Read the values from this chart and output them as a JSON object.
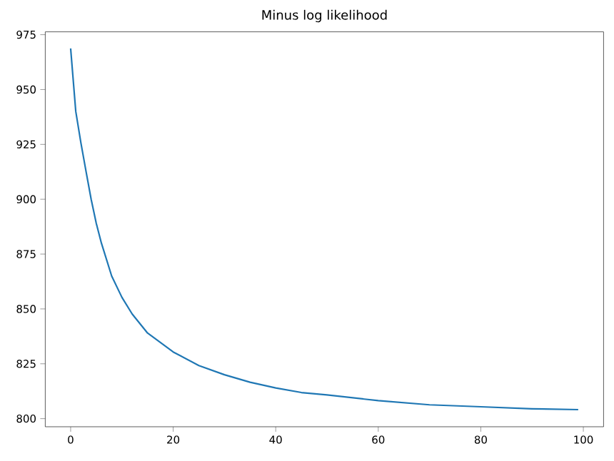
{
  "chart_data": {
    "type": "line",
    "title": "Minus log likelihood",
    "x": [
      0,
      1,
      2,
      3,
      4,
      5,
      6,
      8,
      10,
      12,
      15,
      20,
      25,
      30,
      35,
      40,
      45,
      50,
      60,
      70,
      80,
      90,
      99
    ],
    "series": [
      {
        "color": "#1f77b4",
        "values": [
          968.7,
          940,
          925.7,
          912.7,
          900,
          889,
          880,
          865,
          855.3,
          847.7,
          839,
          830.4,
          824.2,
          820,
          816.6,
          814,
          811.9,
          810.8,
          808.2,
          806.3,
          805.4,
          804.5,
          804.1
        ]
      }
    ],
    "xlim": [
      -4.95,
      103.95
    ],
    "ylim": [
      796.3,
      976.3
    ],
    "xticks": [
      0,
      20,
      40,
      60,
      80,
      100
    ],
    "yticks": [
      800,
      825,
      850,
      875,
      900,
      925,
      950,
      975
    ],
    "marker": "none",
    "line_style": "solid"
  }
}
